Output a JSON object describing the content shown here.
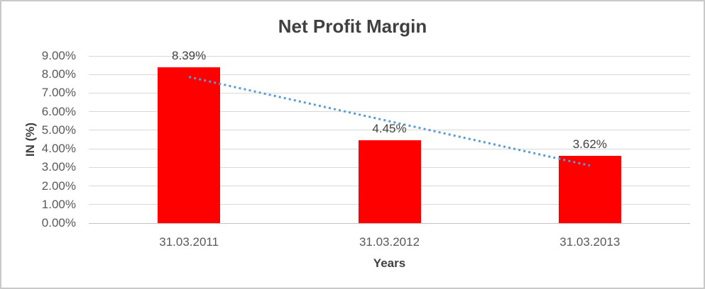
{
  "chart_data": {
    "type": "bar",
    "title": "Net Profit Margin",
    "xlabel": "Years",
    "ylabel": "IN (%)",
    "categories": [
      "31.03.2011",
      "31.03.2012",
      "31.03.2013"
    ],
    "values": [
      8.39,
      4.45,
      3.62
    ],
    "data_labels": [
      "8.39%",
      "4.45%",
      "3.62%"
    ],
    "ylim": [
      0,
      9
    ],
    "yticks": [
      "0.00%",
      "1.00%",
      "2.00%",
      "3.00%",
      "4.00%",
      "5.00%",
      "6.00%",
      "7.00%",
      "8.00%",
      "9.00%"
    ],
    "grid": true,
    "legend": false,
    "bar_color": "#FF0000",
    "trendline": {
      "type": "linear",
      "style": "dotted",
      "color": "#5B9BD5",
      "start_value": 7.87,
      "end_value": 3.1
    },
    "colors": {
      "title_text": "#404040",
      "tick_text": "#595959",
      "gridline": "#D9D9D9",
      "axis_line": "#C3C3C3",
      "frame_border": "#C9C9C9",
      "background": "#FFFFFF"
    }
  }
}
